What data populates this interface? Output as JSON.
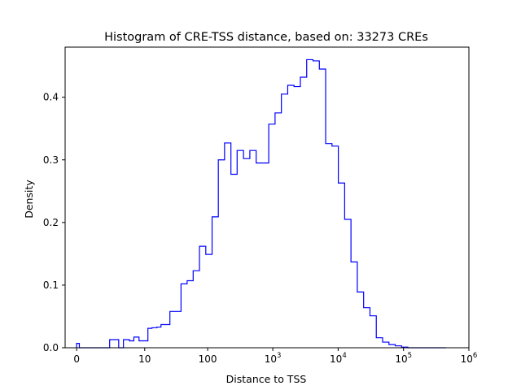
{
  "chart_data": {
    "type": "histogram",
    "title": "Histogram of CRE-TSS distance, based on: 33273 CREs",
    "xlabel": "Distance to TSS",
    "ylabel": "Density",
    "x_scale": "symlog",
    "x_range": [
      -0.5,
      1000000
    ],
    "ylim": [
      0,
      0.48
    ],
    "grid": false,
    "color": "#0000ff",
    "x_ticks": [
      {
        "value": 0,
        "base": "0",
        "exp": ""
      },
      {
        "value": 10,
        "base": "10",
        "exp": ""
      },
      {
        "value": 100,
        "base": "100",
        "exp": ""
      },
      {
        "value": 1000,
        "base": "10",
        "exp": "3"
      },
      {
        "value": 10000,
        "base": "10",
        "exp": "4"
      },
      {
        "value": 100000,
        "base": "10",
        "exp": "5"
      },
      {
        "value": 1000000,
        "base": "10",
        "exp": "6"
      }
    ],
    "y_ticks": [
      {
        "value": 0,
        "label": "0.0"
      },
      {
        "value": 0.1,
        "label": "0.1"
      },
      {
        "value": 0.2,
        "label": "0.2"
      },
      {
        "value": 0.3,
        "label": "0.3"
      },
      {
        "value": 0.4,
        "label": "0.4"
      }
    ],
    "bin_edges": [
      0,
      0.1,
      1.5,
      2.2,
      3.4,
      4.2,
      5.4,
      6.5,
      8.0,
      11.3,
      13.2,
      15.9,
      18.5,
      25.7,
      38.5,
      48.0,
      59.6,
      74.7,
      93.5,
      117,
      146,
      182,
      228,
      284,
      356,
      445,
      556,
      694,
      867,
      1083,
      1354,
      1692,
      2114,
      2642,
      3302,
      4126,
      5156,
      6443,
      8051,
      10062,
      12573,
      15712,
      19633,
      24535,
      30660,
      38313,
      47878,
      59830,
      74765,
      93428,
      116750,
      145895,
      182312,
      227820,
      284690,
      355754,
      444556
    ],
    "densities": [
      0.007,
      0.0,
      0.0,
      0.013,
      0.0,
      0.013,
      0.011,
      0.017,
      0.011,
      0.031,
      0.032,
      0.033,
      0.037,
      0.058,
      0.102,
      0.107,
      0.123,
      0.162,
      0.149,
      0.209,
      0.3,
      0.327,
      0.277,
      0.315,
      0.302,
      0.315,
      0.295,
      0.295,
      0.357,
      0.375,
      0.405,
      0.419,
      0.417,
      0.432,
      0.46,
      0.458,
      0.445,
      0.326,
      0.322,
      0.263,
      0.205,
      0.137,
      0.089,
      0.064,
      0.051,
      0.016,
      0.009,
      0.005,
      0.003,
      0.001,
      0.0,
      0.0,
      0.0,
      0.0,
      0.0,
      0.0
    ]
  }
}
